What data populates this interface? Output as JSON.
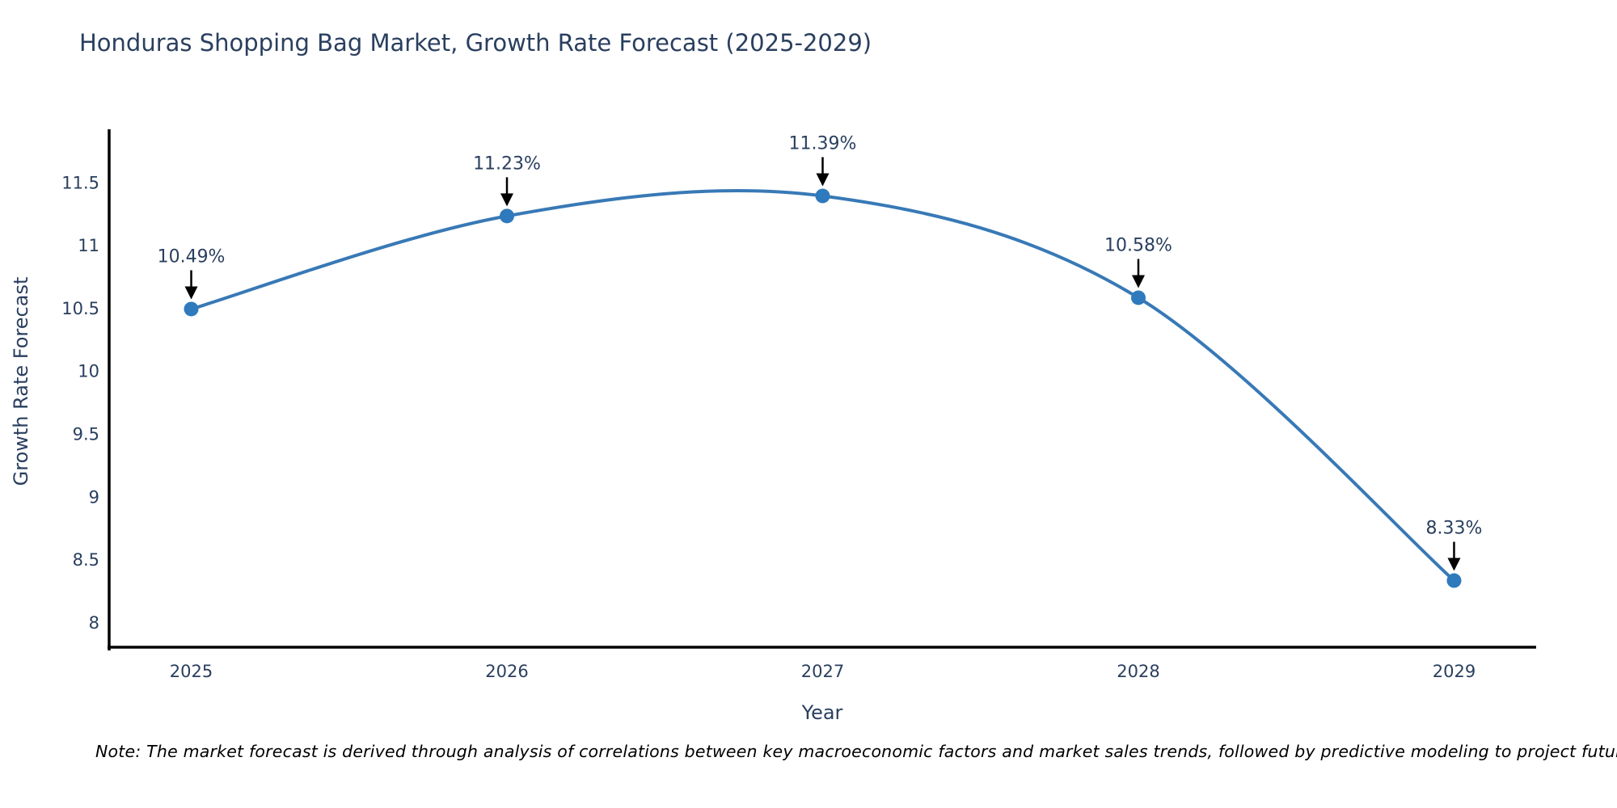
{
  "chart": {
    "title": "Honduras Shopping Bag Market, Growth Rate Forecast (2025-2029)",
    "xlabel": "Year",
    "ylabel": "Growth Rate Forecast",
    "note": "Note: The market forecast is derived through analysis of correlations between key macroeconomic factors and market sales trends, followed by predictive modeling to project future sal"
  },
  "chart_data": {
    "type": "line",
    "title": "Honduras Shopping Bag Market, Growth Rate Forecast (2025-2029)",
    "xlabel": "Year",
    "ylabel": "Growth Rate Forecast",
    "x": [
      2025,
      2026,
      2027,
      2028,
      2029
    ],
    "y": [
      10.49,
      11.23,
      11.39,
      10.58,
      8.33
    ],
    "point_labels": [
      "10.49%",
      "11.23%",
      "11.39%",
      "10.58%",
      "8.33%"
    ],
    "xticks": [
      "2025",
      "2026",
      "2027",
      "2028",
      "2029"
    ],
    "xtick_values": [
      2025,
      2026,
      2027,
      2028,
      2029
    ],
    "yticks": [
      "8",
      "8.5",
      "9",
      "9.5",
      "10",
      "10.5",
      "11",
      "11.5"
    ],
    "ytick_values": [
      8,
      8.5,
      9,
      9.5,
      10,
      10.5,
      11,
      11.5
    ],
    "xlim": [
      2024.74,
      2029.26
    ],
    "ylim": [
      7.8,
      11.92
    ],
    "line_shape": "spline",
    "grid": false,
    "legend": "none",
    "annotations": "black down-arrows from each percentage label to its data point",
    "colors": {
      "line": "#3879b6",
      "marker": "#2e7abc",
      "axis": "#000000",
      "tick_text": "#2a3f5f",
      "annotation_text": "#2a3f5f",
      "annotation_arrow": "#000000",
      "title_text": "#2a3f5f"
    }
  }
}
